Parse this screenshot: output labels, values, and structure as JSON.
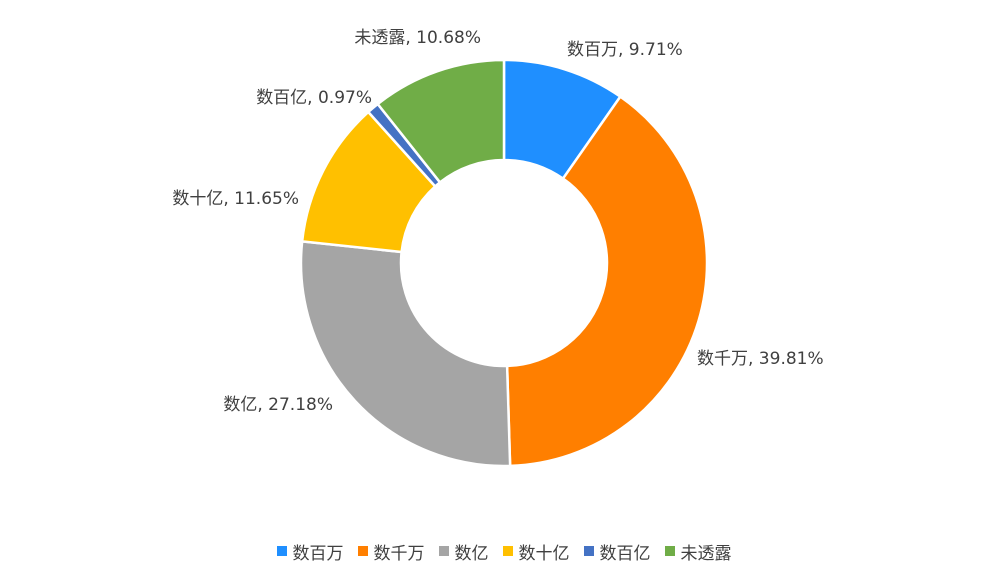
{
  "chart_data": {
    "type": "pie",
    "variant": "donut",
    "categories": [
      "数百万",
      "数千万",
      "数亿",
      "数十亿",
      "数百亿",
      "未透露"
    ],
    "values": [
      9.71,
      39.81,
      27.18,
      11.65,
      0.97,
      10.68
    ],
    "unit": "%",
    "colors": [
      "#1f8fff",
      "#ff7f00",
      "#a5a5a5",
      "#ffc000",
      "#4472c4",
      "#70ad47"
    ],
    "labels": [
      "数百万, 9.71%",
      "数千万, 39.81%",
      "数亿, 27.18%",
      "数十亿, 11.65%",
      "数百亿, 0.97%",
      "未透露, 10.68%"
    ],
    "title": "",
    "legend_position": "bottom",
    "start_angle": "12 o'clock",
    "direction": "clockwise"
  }
}
